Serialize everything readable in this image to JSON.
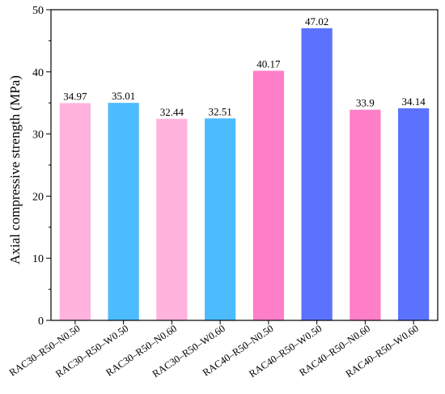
{
  "chart_data": {
    "type": "bar",
    "title": "",
    "xlabel": "",
    "ylabel": "Axial compressive strength (MPa)",
    "ylim": [
      0,
      50
    ],
    "yticks": [
      0,
      10,
      20,
      30,
      40,
      50
    ],
    "grid": false,
    "categories": [
      "RAC30–R50–N0.50",
      "RAC30–R50–W0.50",
      "RAC30–R50–N0.60",
      "RAC30–R50–W0.60",
      "RAC40–R50–N0.50",
      "RAC40–R50–W0.50",
      "RAC40–R50–N0.60",
      "RAC40–R50–W0.60"
    ],
    "values": [
      34.97,
      35.01,
      32.44,
      32.51,
      40.17,
      47.02,
      33.9,
      34.14
    ],
    "value_labels": [
      "34.97",
      "35.01",
      "32.44",
      "32.51",
      "40.17",
      "47.02",
      "33.9",
      "34.14"
    ],
    "bar_colors": [
      "#ffb3dd",
      "#4dbcff",
      "#ffb3dd",
      "#4dbcff",
      "#ff7ec8",
      "#5b72ff",
      "#ff7ec8",
      "#5b72ff"
    ]
  }
}
